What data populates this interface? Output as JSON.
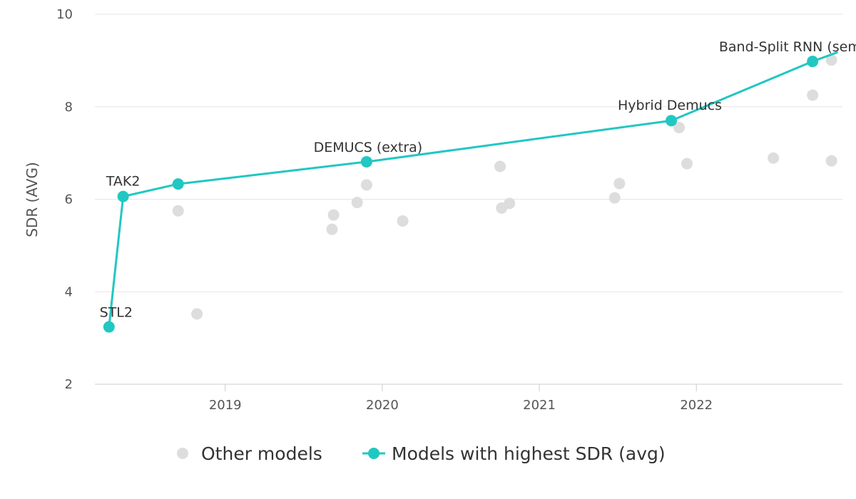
{
  "chart_data": {
    "type": "scatter",
    "title": "",
    "xlabel": "",
    "ylabel": "SDR (AVG)",
    "xlim": [
      2018.17,
      2022.93
    ],
    "ylim": [
      2,
      10
    ],
    "x_ticks": [
      {
        "value": 2019,
        "label": "2019"
      },
      {
        "value": 2020,
        "label": "2020"
      },
      {
        "value": 2021,
        "label": "2021"
      },
      {
        "value": 2022,
        "label": "2022"
      }
    ],
    "y_ticks": [
      {
        "value": 2,
        "label": "2"
      },
      {
        "value": 4,
        "label": "4"
      },
      {
        "value": 6,
        "label": "6"
      },
      {
        "value": 8,
        "label": "8"
      },
      {
        "value": 10,
        "label": "10"
      }
    ],
    "grid": true,
    "colors": {
      "other": "#dddddd",
      "best": "#21c7c2",
      "grid": "#e6e6e6",
      "axis": "#cccccc"
    },
    "series": [
      {
        "name": "Other models",
        "style": "points",
        "points": [
          {
            "x": 2018.7,
            "y": 5.75
          },
          {
            "x": 2018.82,
            "y": 3.52
          },
          {
            "x": 2019.68,
            "y": 5.35
          },
          {
            "x": 2019.69,
            "y": 5.66
          },
          {
            "x": 2019.84,
            "y": 5.93
          },
          {
            "x": 2019.9,
            "y": 6.31
          },
          {
            "x": 2020.13,
            "y": 5.53
          },
          {
            "x": 2020.75,
            "y": 6.71
          },
          {
            "x": 2020.76,
            "y": 5.81
          },
          {
            "x": 2020.81,
            "y": 5.91
          },
          {
            "x": 2021.48,
            "y": 6.03
          },
          {
            "x": 2021.51,
            "y": 6.34
          },
          {
            "x": 2021.89,
            "y": 7.55
          },
          {
            "x": 2021.94,
            "y": 6.77
          },
          {
            "x": 2022.49,
            "y": 6.89
          },
          {
            "x": 2022.74,
            "y": 8.25
          },
          {
            "x": 2022.86,
            "y": 9.01
          },
          {
            "x": 2022.86,
            "y": 6.83
          }
        ]
      },
      {
        "name": "Models with highest SDR (avg)",
        "style": "line-points",
        "points": [
          {
            "x": 2018.26,
            "y": 3.24,
            "label": "STL2"
          },
          {
            "x": 2018.35,
            "y": 6.06,
            "label": "TAK2"
          },
          {
            "x": 2018.7,
            "y": 6.33,
            "label": ""
          },
          {
            "x": 2019.9,
            "y": 6.81,
            "label": "DEMUCS (extra)"
          },
          {
            "x": 2021.84,
            "y": 7.7,
            "label": "Hybrid Demucs"
          },
          {
            "x": 2022.74,
            "y": 8.98,
            "label": "Band-Split RNN (semi-sup.)"
          },
          {
            "x": 2022.9,
            "y": 9.18,
            "label": ""
          }
        ]
      }
    ],
    "legend": [
      {
        "label": "Other models",
        "style": "point"
      },
      {
        "label": "Models with highest SDR (avg)",
        "style": "line-point"
      }
    ],
    "legend_position": "bottom-center"
  }
}
